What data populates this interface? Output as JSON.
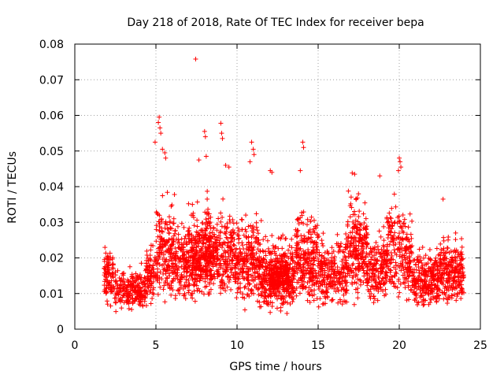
{
  "chart_data": {
    "type": "scatter",
    "title": "Day 218 of 2018, Rate Of TEC Index for receiver bepa",
    "xlabel": "GPS time / hours",
    "ylabel": "ROTI / TECUs",
    "xlim": [
      0,
      25
    ],
    "ylim": [
      0,
      0.08
    ],
    "xticks": [
      0,
      5,
      10,
      15,
      20,
      25
    ],
    "yticks": [
      0,
      0.01,
      0.02,
      0.03,
      0.04,
      0.05,
      0.06,
      0.07,
      0.08
    ],
    "xtick_labels": [
      "0",
      "5",
      "10",
      "15",
      "20",
      "25"
    ],
    "ytick_labels": [
      "0",
      "0.01",
      "0.02",
      "0.03",
      "0.04",
      "0.05",
      "0.06",
      "0.07",
      "0.08"
    ],
    "grid": true,
    "marker": "plus",
    "color": "#ff0000",
    "series": [
      {
        "name": "ROTI",
        "peaks": [
          [
            7.45,
            0.0758
          ],
          [
            5.2,
            0.0595
          ],
          [
            5.15,
            0.058
          ],
          [
            5.25,
            0.0565
          ],
          [
            5.3,
            0.055
          ],
          [
            9.0,
            0.0578
          ],
          [
            9.05,
            0.055
          ],
          [
            9.1,
            0.0535
          ],
          [
            8.0,
            0.0555
          ],
          [
            8.05,
            0.054
          ],
          [
            10.9,
            0.0525
          ],
          [
            11.0,
            0.0505
          ],
          [
            11.05,
            0.049
          ],
          [
            14.05,
            0.0525
          ],
          [
            14.1,
            0.051
          ],
          [
            4.95,
            0.0525
          ],
          [
            5.4,
            0.0505
          ],
          [
            5.55,
            0.0495
          ],
          [
            5.6,
            0.048
          ],
          [
            20.0,
            0.048
          ],
          [
            20.05,
            0.047
          ],
          [
            20.1,
            0.0455
          ],
          [
            19.95,
            0.0445
          ],
          [
            8.1,
            0.0485
          ],
          [
            9.3,
            0.046
          ],
          [
            9.5,
            0.0455
          ],
          [
            12.05,
            0.0445
          ],
          [
            12.15,
            0.044
          ],
          [
            13.9,
            0.0445
          ],
          [
            17.1,
            0.0438
          ],
          [
            17.25,
            0.0435
          ],
          [
            18.8,
            0.043
          ],
          [
            22.7,
            0.0365
          ],
          [
            7.65,
            0.0475
          ],
          [
            10.8,
            0.047
          ]
        ],
        "regions": [
          {
            "x": [
              1.8,
              2.4
            ],
            "y": [
              0.006,
              0.026
            ],
            "n": 90
          },
          {
            "x": [
              2.4,
              4.4
            ],
            "y": [
              0.004,
              0.019
            ],
            "n": 230
          },
          {
            "x": [
              4.4,
              5.0
            ],
            "y": [
              0.006,
              0.026
            ],
            "n": 80
          },
          {
            "x": [
              5.0,
              6.2
            ],
            "y": [
              0.006,
              0.042
            ],
            "n": 200
          },
          {
            "x": [
              6.2,
              8.0
            ],
            "y": [
              0.005,
              0.035
            ],
            "n": 260
          },
          {
            "x": [
              7.0,
              8.4
            ],
            "y": [
              0.008,
              0.041
            ],
            "n": 140
          },
          {
            "x": [
              8.0,
              10.0
            ],
            "y": [
              0.006,
              0.038
            ],
            "n": 330
          },
          {
            "x": [
              10.0,
              11.5
            ],
            "y": [
              0.005,
              0.035
            ],
            "n": 260
          },
          {
            "x": [
              11.5,
              13.5
            ],
            "y": [
              0.003,
              0.03
            ],
            "n": 340
          },
          {
            "x": [
              12.0,
              13.2
            ],
            "y": [
              0.008,
              0.022
            ],
            "n": 180
          },
          {
            "x": [
              13.5,
              15.0
            ],
            "y": [
              0.005,
              0.038
            ],
            "n": 260
          },
          {
            "x": [
              15.0,
              16.8
            ],
            "y": [
              0.005,
              0.03
            ],
            "n": 250
          },
          {
            "x": [
              16.8,
              18.0
            ],
            "y": [
              0.006,
              0.042
            ],
            "n": 220
          },
          {
            "x": [
              18.0,
              19.2
            ],
            "y": [
              0.006,
              0.03
            ],
            "n": 180
          },
          {
            "x": [
              19.2,
              20.8
            ],
            "y": [
              0.006,
              0.04
            ],
            "n": 230
          },
          {
            "x": [
              20.8,
              22.5
            ],
            "y": [
              0.005,
              0.025
            ],
            "n": 260
          },
          {
            "x": [
              22.5,
              23.5
            ],
            "y": [
              0.005,
              0.03
            ],
            "n": 170
          },
          {
            "x": [
              23.5,
              24.0
            ],
            "y": [
              0.006,
              0.029
            ],
            "n": 70
          }
        ]
      }
    ]
  }
}
